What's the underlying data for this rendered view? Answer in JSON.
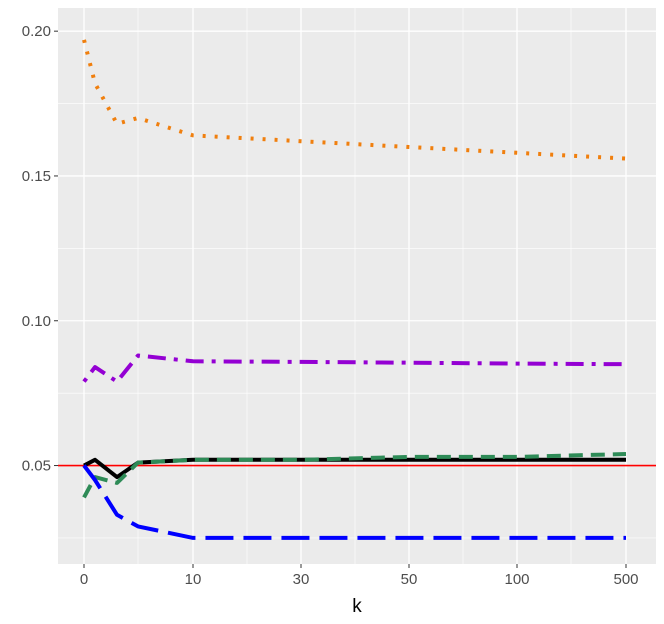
{
  "chart_data": {
    "type": "line",
    "title": "",
    "xlabel": "k",
    "ylabel": "",
    "x_ticks": [
      "0",
      "10",
      "30",
      "50",
      "100",
      "500"
    ],
    "y_ticks": [
      "0.05",
      "0.10",
      "0.15",
      "0.20"
    ],
    "ylim": [
      0.016,
      0.208
    ],
    "grid": true,
    "legend": "none",
    "reference_line": {
      "y": 0.05,
      "color": "#ff0000"
    },
    "series": [
      {
        "color": "#f07f0e",
        "dash": "dotted",
        "x": [
          "0",
          "1",
          "3",
          "5",
          "10",
          "30",
          "50",
          "100",
          "500"
        ],
        "y": [
          0.197,
          0.182,
          0.168,
          0.17,
          0.164,
          0.162,
          0.16,
          0.158,
          0.156
        ]
      },
      {
        "color": "#9400d3",
        "dash": "dotdash",
        "x": [
          "0",
          "1",
          "3",
          "5",
          "10",
          "30",
          "50",
          "100",
          "500"
        ],
        "y": [
          0.079,
          0.084,
          0.079,
          0.088,
          0.086,
          0.0858,
          0.0855,
          0.0852,
          0.085
        ]
      },
      {
        "color": "#000000",
        "dash": "solid",
        "x": [
          "0",
          "1",
          "3",
          "5",
          "10",
          "30",
          "50",
          "100",
          "500"
        ],
        "y": [
          0.05,
          0.052,
          0.046,
          0.051,
          0.052,
          0.052,
          0.052,
          0.052,
          0.052
        ]
      },
      {
        "color": "#2e8b57",
        "dash": "dashed",
        "x": [
          "0",
          "1",
          "3",
          "5",
          "10",
          "30",
          "50",
          "100",
          "500"
        ],
        "y": [
          0.039,
          0.046,
          0.044,
          0.051,
          0.052,
          0.052,
          0.053,
          0.053,
          0.054
        ]
      },
      {
        "color": "#0000ff",
        "dash": "longdash",
        "x": [
          "0",
          "1",
          "3",
          "5",
          "10",
          "30",
          "50",
          "100",
          "500"
        ],
        "y": [
          0.05,
          0.045,
          0.033,
          0.029,
          0.025,
          0.025,
          0.025,
          0.025,
          0.025
        ]
      }
    ]
  }
}
